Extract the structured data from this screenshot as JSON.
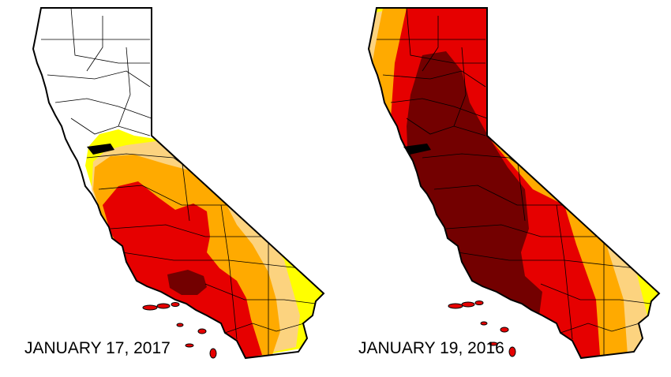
{
  "colors": {
    "none": "#ffffff",
    "d0_abnormally_dry": "#ffff00",
    "d1_moderate": "#fcd37f",
    "d2_severe": "#ffaa00",
    "d3_extreme": "#e60000",
    "d4_exceptional": "#730000",
    "border": "#000000"
  },
  "maps": [
    {
      "id": "2017",
      "date_label": "JANUARY 17, 2017"
    },
    {
      "id": "2016",
      "date_label": "JANUARY 19, 2016"
    }
  ]
}
